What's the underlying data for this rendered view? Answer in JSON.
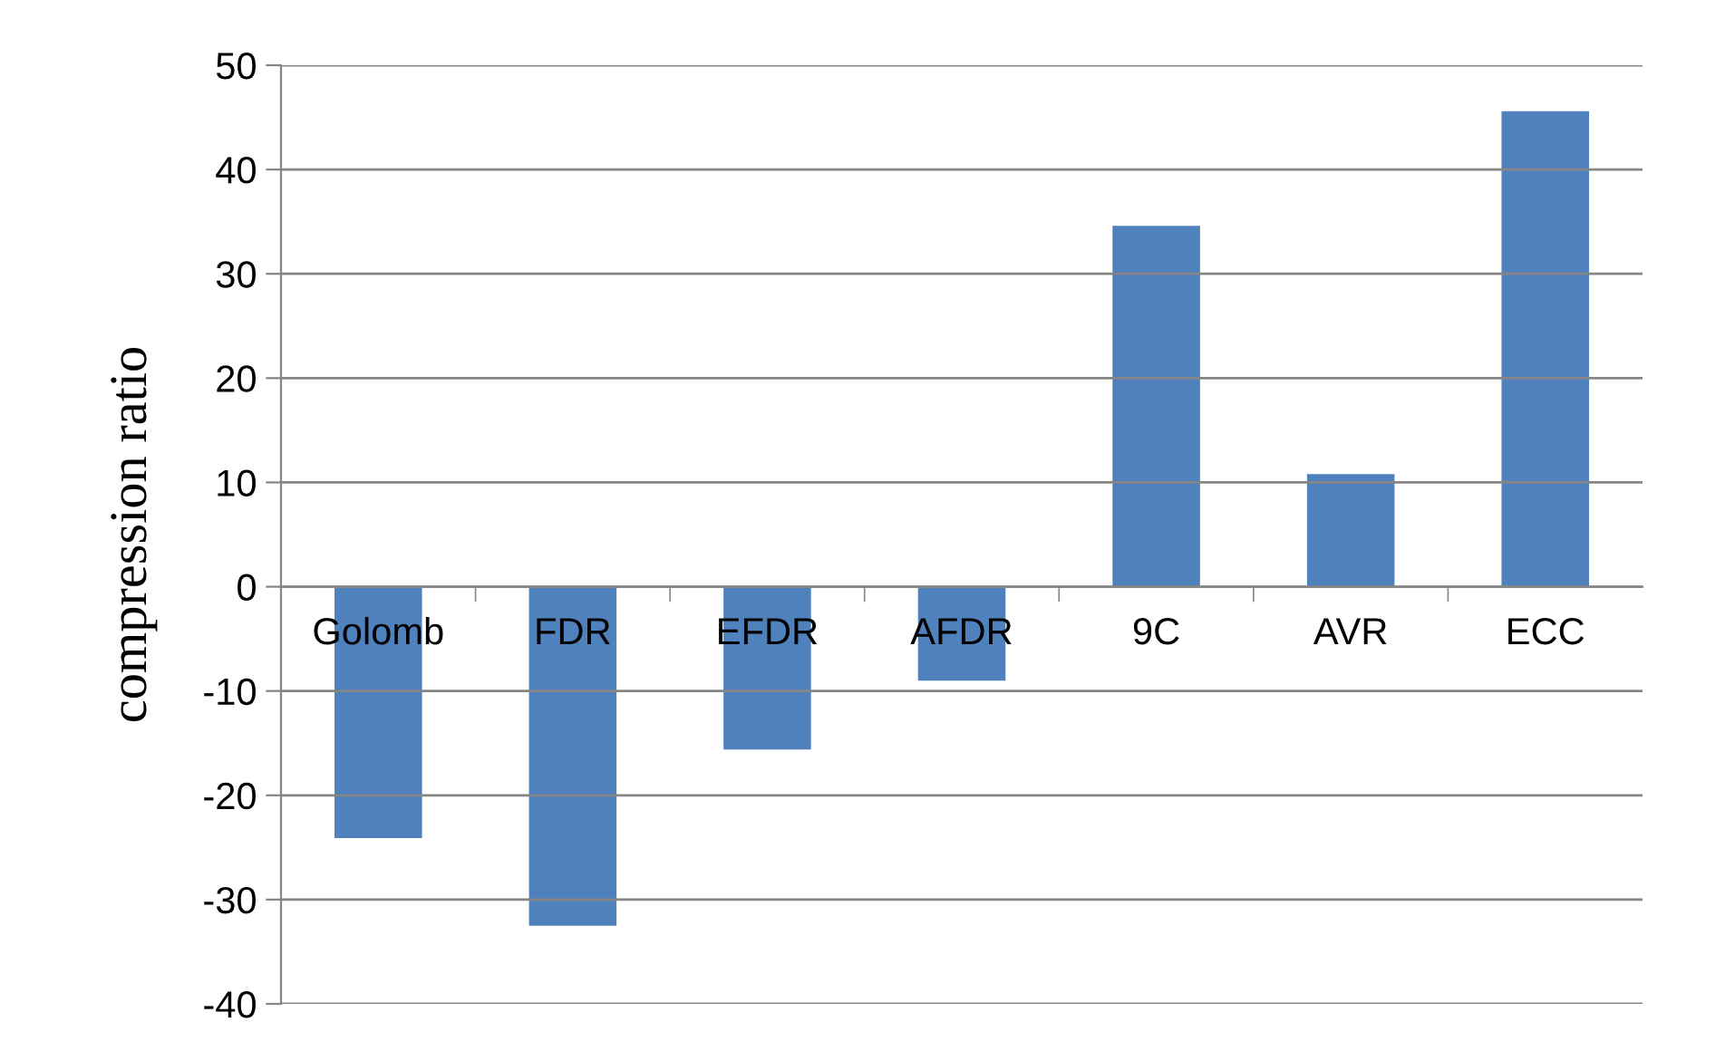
{
  "chart_data": {
    "type": "bar",
    "ylabel": "compression ratio",
    "categories": [
      "Golomb",
      "FDR",
      "EFDR",
      "AFDR",
      "9C",
      "AVR",
      "ECC"
    ],
    "values": [
      -24.1,
      -32.5,
      -15.6,
      -9.0,
      34.6,
      10.8,
      45.6
    ],
    "color": "#4f81bd",
    "ylim": [
      -40,
      50
    ],
    "yticks": [
      -40,
      -30,
      -20,
      -10,
      0,
      10,
      20,
      30,
      40,
      50
    ],
    "grid": "y"
  }
}
